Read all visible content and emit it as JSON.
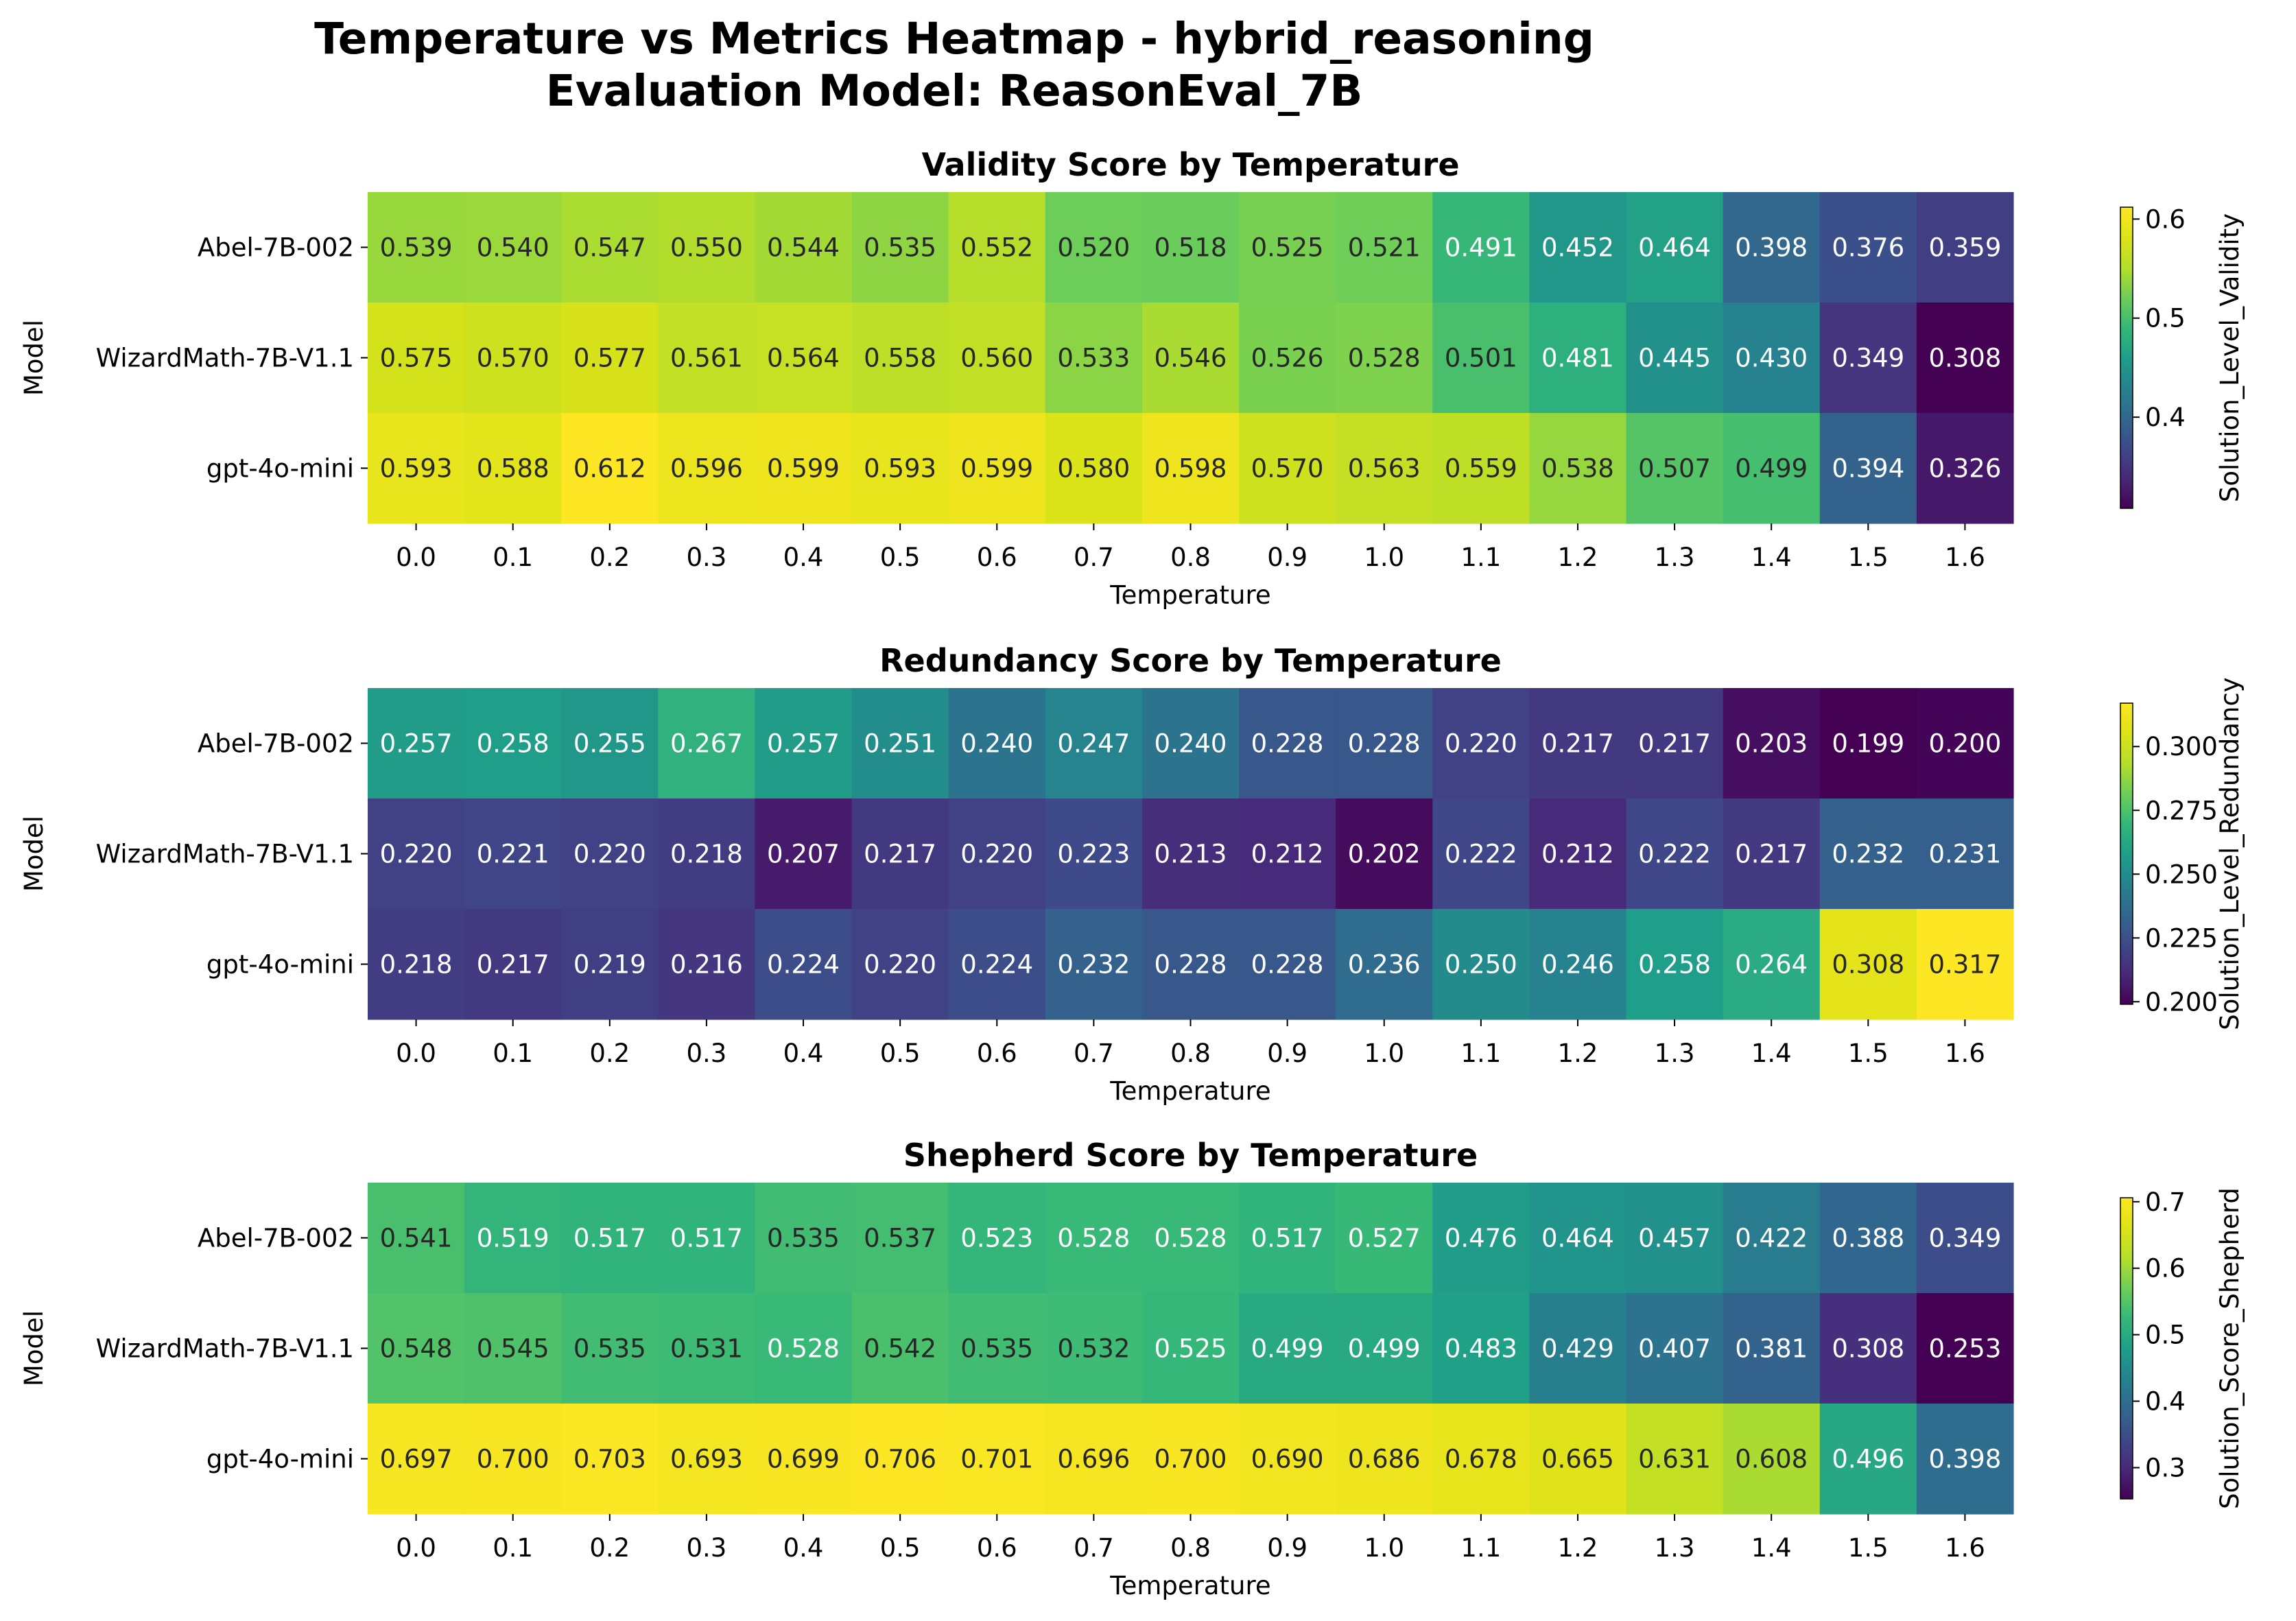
{
  "figure": {
    "title_line1": "Temperature vs Metrics Heatmap - hybrid_reasoning",
    "title_line2": "Evaluation Model: ReasonEval_7B"
  },
  "chart_data": [
    {
      "type": "heatmap",
      "title": "Validity Score by Temperature",
      "xlabel": "Temperature",
      "ylabel": "Model",
      "colorbar_label": "Solution_Level_Validity",
      "colormap": "viridis",
      "vmin": 0.308,
      "vmax": 0.612,
      "colorbar_ticks": [
        "0.4",
        "0.5",
        "0.6"
      ],
      "x": [
        "0.0",
        "0.1",
        "0.2",
        "0.3",
        "0.4",
        "0.5",
        "0.6",
        "0.7",
        "0.8",
        "0.9",
        "1.0",
        "1.1",
        "1.2",
        "1.3",
        "1.4",
        "1.5",
        "1.6"
      ],
      "y": [
        "Abel-7B-002",
        "WizardMath-7B-V1.1",
        "gpt-4o-mini"
      ],
      "values": [
        [
          0.539,
          0.54,
          0.547,
          0.55,
          0.544,
          0.535,
          0.552,
          0.52,
          0.518,
          0.525,
          0.521,
          0.491,
          0.452,
          0.464,
          0.398,
          0.376,
          0.359
        ],
        [
          0.575,
          0.57,
          0.577,
          0.561,
          0.564,
          0.558,
          0.56,
          0.533,
          0.546,
          0.526,
          0.528,
          0.501,
          0.481,
          0.445,
          0.43,
          0.349,
          0.308
        ],
        [
          0.593,
          0.588,
          0.612,
          0.596,
          0.599,
          0.593,
          0.599,
          0.58,
          0.598,
          0.57,
          0.563,
          0.559,
          0.538,
          0.507,
          0.499,
          0.394,
          0.326
        ]
      ]
    },
    {
      "type": "heatmap",
      "title": "Redundancy Score by Temperature",
      "xlabel": "Temperature",
      "ylabel": "Model",
      "colorbar_label": "Solution_Level_Redundancy",
      "colormap": "viridis",
      "vmin": 0.199,
      "vmax": 0.317,
      "colorbar_ticks": [
        "0.200",
        "0.225",
        "0.250",
        "0.275",
        "0.300"
      ],
      "x": [
        "0.0",
        "0.1",
        "0.2",
        "0.3",
        "0.4",
        "0.5",
        "0.6",
        "0.7",
        "0.8",
        "0.9",
        "1.0",
        "1.1",
        "1.2",
        "1.3",
        "1.4",
        "1.5",
        "1.6"
      ],
      "y": [
        "Abel-7B-002",
        "WizardMath-7B-V1.1",
        "gpt-4o-mini"
      ],
      "values": [
        [
          0.257,
          0.258,
          0.255,
          0.267,
          0.257,
          0.251,
          0.24,
          0.247,
          0.24,
          0.228,
          0.228,
          0.22,
          0.217,
          0.217,
          0.203,
          0.199,
          0.2
        ],
        [
          0.22,
          0.221,
          0.22,
          0.218,
          0.207,
          0.217,
          0.22,
          0.223,
          0.213,
          0.212,
          0.202,
          0.222,
          0.212,
          0.222,
          0.217,
          0.232,
          0.231
        ],
        [
          0.218,
          0.217,
          0.219,
          0.216,
          0.224,
          0.22,
          0.224,
          0.232,
          0.228,
          0.228,
          0.236,
          0.25,
          0.246,
          0.258,
          0.264,
          0.308,
          0.317
        ]
      ]
    },
    {
      "type": "heatmap",
      "title": "Shepherd Score by Temperature",
      "xlabel": "Temperature",
      "ylabel": "Model",
      "colorbar_label": "Solution_Score_Shepherd",
      "colormap": "viridis",
      "vmin": 0.253,
      "vmax": 0.706,
      "colorbar_ticks": [
        "0.3",
        "0.4",
        "0.5",
        "0.6",
        "0.7"
      ],
      "x": [
        "0.0",
        "0.1",
        "0.2",
        "0.3",
        "0.4",
        "0.5",
        "0.6",
        "0.7",
        "0.8",
        "0.9",
        "1.0",
        "1.1",
        "1.2",
        "1.3",
        "1.4",
        "1.5",
        "1.6"
      ],
      "y": [
        "Abel-7B-002",
        "WizardMath-7B-V1.1",
        "gpt-4o-mini"
      ],
      "values": [
        [
          0.541,
          0.519,
          0.517,
          0.517,
          0.535,
          0.537,
          0.523,
          0.528,
          0.528,
          0.517,
          0.527,
          0.476,
          0.464,
          0.457,
          0.422,
          0.388,
          0.349
        ],
        [
          0.548,
          0.545,
          0.535,
          0.531,
          0.528,
          0.542,
          0.535,
          0.532,
          0.525,
          0.499,
          0.499,
          0.483,
          0.429,
          0.407,
          0.381,
          0.308,
          0.253
        ],
        [
          0.697,
          0.7,
          0.703,
          0.693,
          0.699,
          0.706,
          0.701,
          0.696,
          0.7,
          0.69,
          0.686,
          0.678,
          0.665,
          0.631,
          0.608,
          0.496,
          0.398
        ]
      ]
    }
  ]
}
